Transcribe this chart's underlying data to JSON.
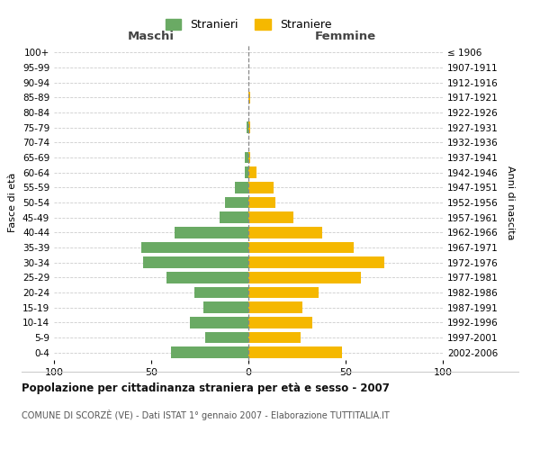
{
  "age_groups": [
    "0-4",
    "5-9",
    "10-14",
    "15-19",
    "20-24",
    "25-29",
    "30-34",
    "35-39",
    "40-44",
    "45-49",
    "50-54",
    "55-59",
    "60-64",
    "65-69",
    "70-74",
    "75-79",
    "80-84",
    "85-89",
    "90-94",
    "95-99",
    "100+"
  ],
  "birth_years": [
    "2002-2006",
    "1997-2001",
    "1992-1996",
    "1987-1991",
    "1982-1986",
    "1977-1981",
    "1972-1976",
    "1967-1971",
    "1962-1966",
    "1957-1961",
    "1952-1956",
    "1947-1951",
    "1942-1946",
    "1937-1941",
    "1932-1936",
    "1927-1931",
    "1922-1926",
    "1917-1921",
    "1912-1916",
    "1907-1911",
    "≤ 1906"
  ],
  "males": [
    40,
    22,
    30,
    23,
    28,
    42,
    54,
    55,
    38,
    15,
    12,
    7,
    2,
    2,
    0,
    1,
    0,
    0,
    0,
    0,
    0
  ],
  "females": [
    48,
    27,
    33,
    28,
    36,
    58,
    70,
    54,
    38,
    23,
    14,
    13,
    4,
    1,
    0,
    1,
    0,
    1,
    0,
    0,
    0
  ],
  "male_color": "#6aaa64",
  "female_color": "#f5b800",
  "background_color": "#ffffff",
  "grid_color": "#cccccc",
  "center_line_color": "#888888",
  "title": "Popolazione per cittadinanza straniera per età e sesso - 2007",
  "subtitle": "COMUNE DI SCORZÈ (VE) - Dati ISTAT 1° gennaio 2007 - Elaborazione TUTTITALIA.IT",
  "xlabel_left": "Maschi",
  "xlabel_right": "Femmine",
  "ylabel_left": "Fasce di età",
  "ylabel_right": "Anni di nascita",
  "legend_male": "Stranieri",
  "legend_female": "Straniere",
  "xlim": 100,
  "xticks": [
    -100,
    -50,
    0,
    50,
    100
  ],
  "xtick_labels": [
    "100",
    "50",
    "0",
    "50",
    "100"
  ]
}
